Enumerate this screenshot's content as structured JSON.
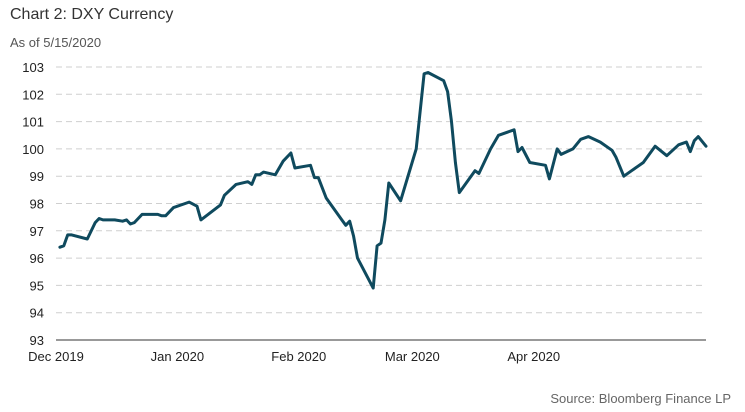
{
  "header": {
    "title": "Chart 2: DXY Currency",
    "subtitle": "As of 5/15/2020"
  },
  "footer": {
    "source": "Source: Bloomberg Finance LP"
  },
  "colors": {
    "line": "#0f4a5e",
    "grid": "#cfcfcf",
    "axis": "#333333"
  },
  "chart_data": {
    "type": "line",
    "title": "Chart 2: DXY Currency",
    "subtitle": "As of 5/15/2020",
    "xlabel": "",
    "ylabel": "",
    "ylim": [
      93,
      103
    ],
    "yticks": [
      93,
      94,
      95,
      96,
      97,
      98,
      99,
      100,
      101,
      102,
      103
    ],
    "xlim": [
      "2019-12-01",
      "2020-05-15"
    ],
    "xticks": [
      {
        "date": "2019-12-01",
        "label": "Dec 2019"
      },
      {
        "date": "2020-01-01",
        "label": "Jan 2020"
      },
      {
        "date": "2020-02-01",
        "label": "Feb 2020"
      },
      {
        "date": "2020-03-01",
        "label": "Mar 2020"
      },
      {
        "date": "2020-04-01",
        "label": "Apr 2020"
      }
    ],
    "grid": "horizontal dashed",
    "series": [
      {
        "points": [
          [
            "2019-12-02",
            96.4
          ],
          [
            "2019-12-03",
            96.45
          ],
          [
            "2019-12-04",
            96.85
          ],
          [
            "2019-12-05",
            96.85
          ],
          [
            "2019-12-09",
            96.7
          ],
          [
            "2019-12-11",
            97.3
          ],
          [
            "2019-12-12",
            97.45
          ],
          [
            "2019-12-13",
            97.4
          ],
          [
            "2019-12-16",
            97.4
          ],
          [
            "2019-12-18",
            97.35
          ],
          [
            "2019-12-19",
            97.4
          ],
          [
            "2019-12-20",
            97.25
          ],
          [
            "2019-12-21",
            97.3
          ],
          [
            "2019-12-23",
            97.6
          ],
          [
            "2019-12-27",
            97.6
          ],
          [
            "2019-12-28",
            97.55
          ],
          [
            "2019-12-29",
            97.55
          ],
          [
            "2019-12-31",
            97.85
          ],
          [
            "2020-01-03",
            98.0
          ],
          [
            "2020-01-04",
            98.05
          ],
          [
            "2020-01-06",
            97.9
          ],
          [
            "2020-01-07",
            97.4
          ],
          [
            "2020-01-12",
            97.95
          ],
          [
            "2020-01-13",
            98.3
          ],
          [
            "2020-01-16",
            98.7
          ],
          [
            "2020-01-19",
            98.8
          ],
          [
            "2020-01-20",
            98.7
          ],
          [
            "2020-01-21",
            99.05
          ],
          [
            "2020-01-22",
            99.05
          ],
          [
            "2020-01-23",
            99.15
          ],
          [
            "2020-01-26",
            99.05
          ],
          [
            "2020-01-28",
            99.55
          ],
          [
            "2020-01-30",
            99.85
          ],
          [
            "2020-01-31",
            99.3
          ],
          [
            "2020-02-04",
            99.4
          ],
          [
            "2020-02-05",
            98.95
          ],
          [
            "2020-02-06",
            98.95
          ],
          [
            "2020-02-08",
            98.2
          ],
          [
            "2020-02-12",
            97.4
          ],
          [
            "2020-02-13",
            97.2
          ],
          [
            "2020-02-14",
            97.35
          ],
          [
            "2020-02-15",
            96.8
          ],
          [
            "2020-02-16",
            96.0
          ],
          [
            "2020-02-20",
            94.9
          ],
          [
            "2020-02-21",
            96.45
          ],
          [
            "2020-02-22",
            96.55
          ],
          [
            "2020-02-23",
            97.4
          ],
          [
            "2020-02-24",
            98.75
          ],
          [
            "2020-02-27",
            98.1
          ],
          [
            "2020-03-02",
            100.0
          ],
          [
            "2020-03-04",
            102.75
          ],
          [
            "2020-03-05",
            102.8
          ],
          [
            "2020-03-09",
            102.5
          ],
          [
            "2020-03-10",
            102.1
          ],
          [
            "2020-03-11",
            101.0
          ],
          [
            "2020-03-12",
            99.5
          ],
          [
            "2020-03-13",
            98.4
          ],
          [
            "2020-03-17",
            99.2
          ],
          [
            "2020-03-18",
            99.1
          ],
          [
            "2020-03-21",
            100.0
          ],
          [
            "2020-03-23",
            100.5
          ],
          [
            "2020-03-27",
            100.7
          ],
          [
            "2020-03-28",
            99.9
          ],
          [
            "2020-03-29",
            100.05
          ],
          [
            "2020-03-31",
            99.5
          ],
          [
            "2020-04-04",
            99.4
          ],
          [
            "2020-04-05",
            98.9
          ],
          [
            "2020-04-07",
            100.0
          ],
          [
            "2020-04-08",
            99.8
          ],
          [
            "2020-04-11",
            100.0
          ],
          [
            "2020-04-13",
            100.35
          ],
          [
            "2020-04-15",
            100.45
          ],
          [
            "2020-04-18",
            100.25
          ],
          [
            "2020-04-21",
            99.95
          ],
          [
            "2020-04-22",
            99.7
          ],
          [
            "2020-04-24",
            99.0
          ],
          [
            "2020-04-26",
            99.2
          ],
          [
            "2020-04-29",
            99.5
          ],
          [
            "2020-05-02",
            100.1
          ],
          [
            "2020-05-05",
            99.75
          ],
          [
            "2020-05-08",
            100.15
          ],
          [
            "2020-05-10",
            100.25
          ],
          [
            "2020-05-11",
            99.9
          ],
          [
            "2020-05-12",
            100.3
          ],
          [
            "2020-05-13",
            100.45
          ],
          [
            "2020-05-15",
            100.1
          ]
        ]
      }
    ]
  }
}
